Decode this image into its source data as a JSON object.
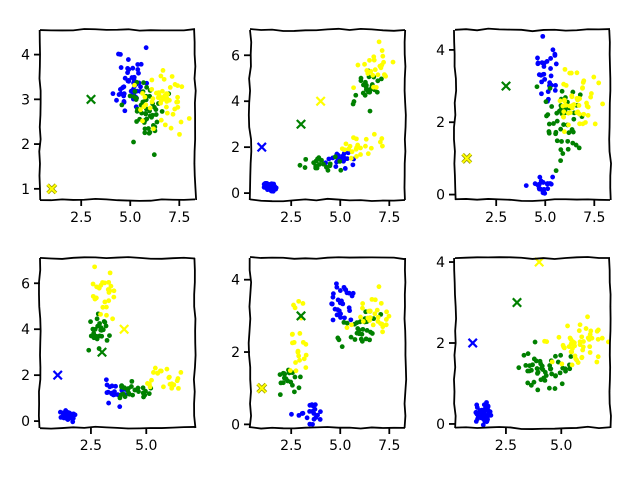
{
  "chart_data": [
    {
      "type": "scatter",
      "xlim": [
        0.4,
        8.3
      ],
      "ylim": [
        0.75,
        4.55
      ],
      "xticks": [
        "2.5",
        "5.0",
        "7.5"
      ],
      "xtick_values": [
        2.5,
        5.0,
        7.5
      ],
      "yticks": [
        "1",
        "2",
        "3",
        "4"
      ],
      "ytick_values": [
        1,
        2,
        3,
        4
      ],
      "centroids": [
        {
          "color_key": "yellow",
          "x": 1.0,
          "y": 1.0,
          "face": "#ffff00",
          "edge": "#999900"
        },
        {
          "color_key": "green",
          "x": 3.0,
          "y": 3.0
        }
      ],
      "clusters": [
        {
          "color_key": "blue",
          "cx": 5.0,
          "cy": 3.4,
          "sx": 0.35,
          "sy": 0.38,
          "n": 50,
          "seed": 11
        },
        {
          "color_key": "green",
          "cx": 5.9,
          "cy": 2.75,
          "sx": 0.5,
          "sy": 0.32,
          "n": 50,
          "seed": 12
        },
        {
          "color_key": "yellow",
          "cx": 6.6,
          "cy": 2.98,
          "sx": 0.6,
          "sy": 0.32,
          "n": 50,
          "seed": 13
        }
      ]
    },
    {
      "type": "scatter",
      "xlim": [
        0.4,
        8.3
      ],
      "ylim": [
        -0.3,
        7.1
      ],
      "xticks": [
        "2.5",
        "5.0",
        "7.5"
      ],
      "xtick_values": [
        2.5,
        5.0,
        7.5
      ],
      "yticks": [
        "0",
        "2",
        "4",
        "6"
      ],
      "ytick_values": [
        0,
        2,
        4,
        6
      ],
      "centroids": [
        {
          "color_key": "blue",
          "x": 1.0,
          "y": 2.0
        },
        {
          "color_key": "green",
          "x": 3.0,
          "y": 3.0
        },
        {
          "color_key": "yellow",
          "x": 4.0,
          "y": 4.0
        }
      ],
      "clusters": [
        {
          "color_key": "blue",
          "cx": 1.45,
          "cy": 0.25,
          "sx": 0.2,
          "sy": 0.1,
          "n": 30,
          "seed": 21
        },
        {
          "color_key": "blue",
          "cx": 4.9,
          "cy": 1.45,
          "sx": 0.35,
          "sy": 0.2,
          "n": 20,
          "seed": 22
        },
        {
          "color_key": "green",
          "cx": 4.3,
          "cy": 1.25,
          "sx": 0.5,
          "sy": 0.15,
          "n": 22,
          "seed": 23
        },
        {
          "color_key": "green",
          "cx": 6.3,
          "cy": 4.5,
          "sx": 0.4,
          "sy": 0.4,
          "n": 28,
          "seed": 24
        },
        {
          "color_key": "yellow",
          "cx": 6.1,
          "cy": 1.95,
          "sx": 0.55,
          "sy": 0.22,
          "n": 25,
          "seed": 25
        },
        {
          "color_key": "yellow",
          "cx": 6.9,
          "cy": 5.7,
          "sx": 0.5,
          "sy": 0.55,
          "n": 25,
          "seed": 26
        }
      ]
    },
    {
      "type": "scatter",
      "xlim": [
        0.4,
        8.3
      ],
      "ylim": [
        -0.15,
        4.55
      ],
      "xticks": [
        "2.5",
        "5.0",
        "7.5"
      ],
      "xtick_values": [
        2.5,
        5.0,
        7.5
      ],
      "yticks": [
        "0",
        "2",
        "4"
      ],
      "ytick_values": [
        0,
        2,
        4
      ],
      "centroids": [
        {
          "color_key": "yellow",
          "x": 1.0,
          "y": 1.0,
          "face": "#ffff00",
          "edge": "#999900"
        },
        {
          "color_key": "green",
          "x": 3.0,
          "y": 3.0
        }
      ],
      "clusters": [
        {
          "color_key": "blue",
          "cx": 5.0,
          "cy": 3.4,
          "sx": 0.35,
          "sy": 0.45,
          "n": 30,
          "seed": 31
        },
        {
          "color_key": "blue",
          "cx": 5.0,
          "cy": 0.25,
          "sx": 0.35,
          "sy": 0.12,
          "n": 20,
          "seed": 32
        },
        {
          "color_key": "green",
          "cx": 5.9,
          "cy": 1.9,
          "sx": 0.45,
          "sy": 0.55,
          "n": 50,
          "seed": 33
        },
        {
          "color_key": "yellow",
          "cx": 6.6,
          "cy": 2.5,
          "sx": 0.55,
          "sy": 0.5,
          "n": 50,
          "seed": 34
        }
      ]
    },
    {
      "type": "scatter",
      "xlim": [
        0.2,
        7.2
      ],
      "ylim": [
        -0.3,
        7.1
      ],
      "xticks": [
        "2.5",
        "5.0"
      ],
      "xtick_values": [
        2.5,
        5.0
      ],
      "yticks": [
        "0",
        "2",
        "4",
        "6"
      ],
      "ytick_values": [
        0,
        2,
        4,
        6
      ],
      "centroids": [
        {
          "color_key": "blue",
          "x": 1.0,
          "y": 2.0
        },
        {
          "color_key": "green",
          "x": 3.0,
          "y": 3.0
        },
        {
          "color_key": "yellow",
          "x": 4.0,
          "y": 4.0
        }
      ],
      "clusters": [
        {
          "color_key": "blue",
          "cx": 1.45,
          "cy": 0.25,
          "sx": 0.2,
          "sy": 0.12,
          "n": 30,
          "seed": 41
        },
        {
          "color_key": "blue",
          "cx": 3.4,
          "cy": 1.3,
          "sx": 0.35,
          "sy": 0.25,
          "n": 20,
          "seed": 42
        },
        {
          "color_key": "green",
          "cx": 2.8,
          "cy": 4.0,
          "sx": 0.25,
          "sy": 0.5,
          "n": 25,
          "seed": 43
        },
        {
          "color_key": "green",
          "cx": 4.3,
          "cy": 1.25,
          "sx": 0.5,
          "sy": 0.2,
          "n": 25,
          "seed": 44
        },
        {
          "color_key": "yellow",
          "cx": 3.0,
          "cy": 5.6,
          "sx": 0.3,
          "sy": 0.6,
          "n": 25,
          "seed": 45
        },
        {
          "color_key": "yellow",
          "cx": 6.0,
          "cy": 1.9,
          "sx": 0.6,
          "sy": 0.25,
          "n": 25,
          "seed": 46
        }
      ]
    },
    {
      "type": "scatter",
      "xlim": [
        0.4,
        8.3
      ],
      "ylim": [
        -0.1,
        4.6
      ],
      "xticks": [
        "2.5",
        "5.0",
        "7.5"
      ],
      "xtick_values": [
        2.5,
        5.0,
        7.5
      ],
      "yticks": [
        "0",
        "2",
        "4"
      ],
      "ytick_values": [
        0,
        2,
        4
      ],
      "centroids": [
        {
          "color_key": "yellow",
          "x": 1.0,
          "y": 1.0,
          "face": "#ffff00",
          "edge": "#999900"
        },
        {
          "color_key": "green",
          "x": 3.0,
          "y": 3.0
        }
      ],
      "clusters": [
        {
          "color_key": "blue",
          "cx": 5.0,
          "cy": 3.4,
          "sx": 0.35,
          "sy": 0.35,
          "n": 30,
          "seed": 51
        },
        {
          "color_key": "blue",
          "cx": 3.4,
          "cy": 0.3,
          "sx": 0.35,
          "sy": 0.15,
          "n": 20,
          "seed": 52
        },
        {
          "color_key": "green",
          "cx": 2.4,
          "cy": 1.3,
          "sx": 0.35,
          "sy": 0.2,
          "n": 20,
          "seed": 53
        },
        {
          "color_key": "green",
          "cx": 6.0,
          "cy": 2.7,
          "sx": 0.5,
          "sy": 0.3,
          "n": 30,
          "seed": 54
        },
        {
          "color_key": "yellow",
          "cx": 2.9,
          "cy": 2.2,
          "sx": 0.3,
          "sy": 0.5,
          "n": 22,
          "seed": 55
        },
        {
          "color_key": "yellow",
          "cx": 6.6,
          "cy": 3.0,
          "sx": 0.55,
          "sy": 0.3,
          "n": 28,
          "seed": 56
        }
      ]
    },
    {
      "type": "scatter",
      "xlim": [
        0.2,
        7.2
      ],
      "ylim": [
        -0.1,
        4.1
      ],
      "xticks": [
        "2.5",
        "5.0"
      ],
      "xtick_values": [
        2.5,
        5.0
      ],
      "yticks": [
        "0",
        "2",
        "4"
      ],
      "ytick_values": [
        0,
        2,
        4
      ],
      "centroids": [
        {
          "color_key": "blue",
          "x": 1.0,
          "y": 2.0
        },
        {
          "color_key": "green",
          "x": 3.0,
          "y": 3.0
        },
        {
          "color_key": "yellow",
          "x": 4.0,
          "y": 4.0
        }
      ],
      "clusters": [
        {
          "color_key": "blue",
          "cx": 1.45,
          "cy": 0.25,
          "sx": 0.2,
          "sy": 0.15,
          "n": 50,
          "seed": 61
        },
        {
          "color_key": "green",
          "cx": 4.3,
          "cy": 1.35,
          "sx": 0.5,
          "sy": 0.22,
          "n": 50,
          "seed": 62
        },
        {
          "color_key": "yellow",
          "cx": 5.6,
          "cy": 2.0,
          "sx": 0.65,
          "sy": 0.3,
          "n": 50,
          "seed": 63
        }
      ]
    }
  ],
  "colors": {
    "blue": "#0000ff",
    "green": "#008000",
    "yellow": "#ffff00"
  }
}
